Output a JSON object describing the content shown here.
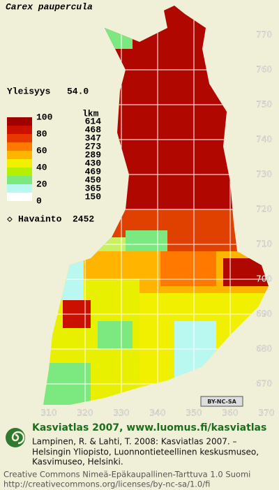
{
  "title": "Carex paupercula",
  "frequency": {
    "label": "Yleisyys",
    "value": "54.0"
  },
  "legend": {
    "header": "lkm",
    "scale_labels": [
      100,
      80,
      60,
      40,
      20,
      0
    ],
    "classes": [
      {
        "count": 614,
        "color": "#a00000"
      },
      {
        "count": 468,
        "color": "#cc1000"
      },
      {
        "count": 347,
        "color": "#e83800"
      },
      {
        "count": 273,
        "color": "#ff7800"
      },
      {
        "count": 289,
        "color": "#ffb400"
      },
      {
        "count": 430,
        "color": "#f0f000"
      },
      {
        "count": 469,
        "color": "#b4f000"
      },
      {
        "count": 450,
        "color": "#7ce880"
      },
      {
        "count": 365,
        "color": "#b8f8f0"
      },
      {
        "count": 150,
        "color": "#ffffff"
      }
    ]
  },
  "observations": {
    "label": "Havainto",
    "count": 2452
  },
  "grid": {
    "y_labels": [
      770,
      760,
      750,
      740,
      730,
      720,
      710,
      700,
      690,
      680,
      670
    ],
    "x_labels": [
      310,
      320,
      330,
      340,
      350,
      360,
      370
    ]
  },
  "badge": "BY-NC-SA",
  "footer": {
    "headline": "Kasviatlas 2007, www.luomus.fi/kasviatlas",
    "citation": [
      "Lampinen, R. & Lahti, T. 2008: Kasviatlas 2007. –",
      "Helsingin Yliopisto, Luonnontieteellinen keskusmuseo,",
      "Kasvimuseo, Helsinki."
    ],
    "license": [
      "Creative Commons Nimeä-Epäkaupallinen-Tarttuva 1.0 Suomi",
      "http://creativecommons.org/licenses/by-nc-sa/1.0/fi"
    ]
  }
}
